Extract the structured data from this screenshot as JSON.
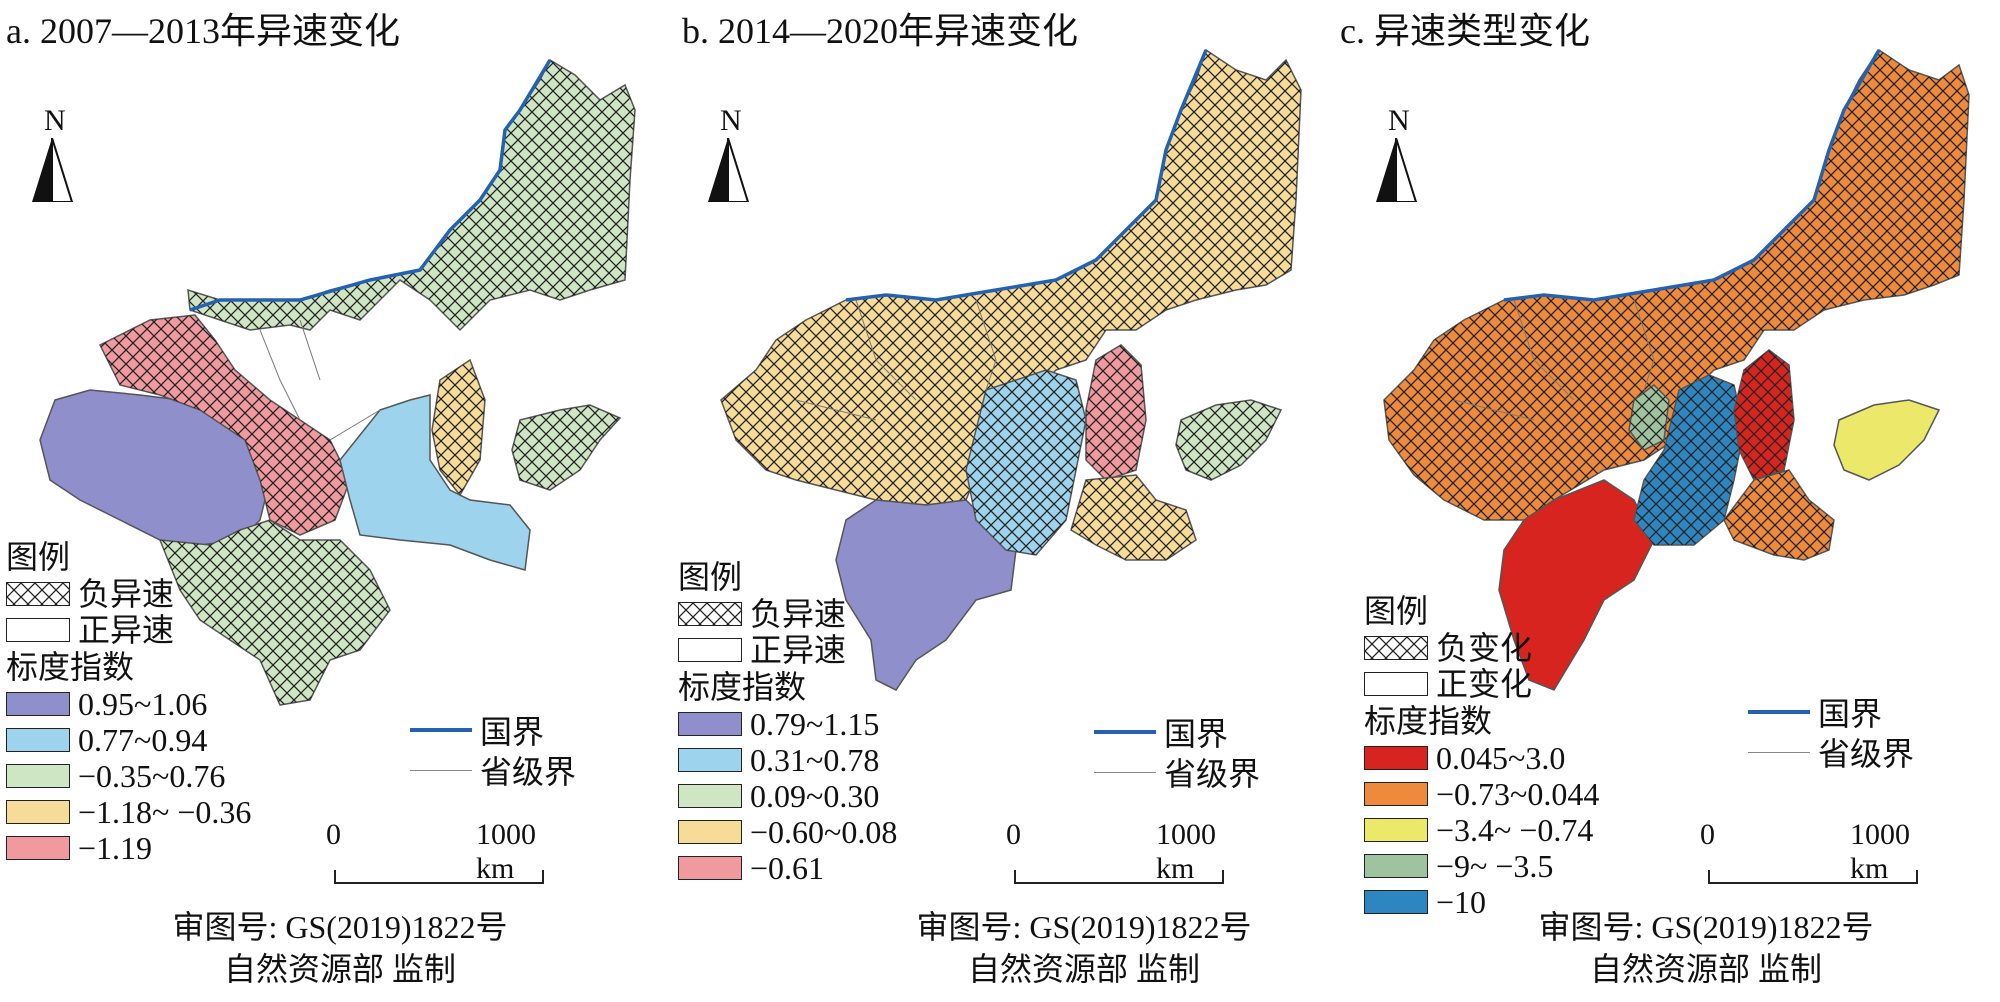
{
  "panels": [
    {
      "title": "a. 2007—2013年异速变化",
      "north": "N",
      "legend": {
        "heading": "图例",
        "pattern_items": [
          {
            "label": "负异速",
            "pattern": "hatch"
          },
          {
            "label": "正异速",
            "pattern": "blank"
          }
        ],
        "scale_heading": "标度指数",
        "classes": [
          {
            "label": "0.95~1.06",
            "color": "#8f8fcc"
          },
          {
            "label": "0.77~0.94",
            "color": "#9dd3ec"
          },
          {
            "label": "−0.35~0.76",
            "color": "#cfe6c4"
          },
          {
            "label": "−1.18~ −0.36",
            "color": "#f6dc98"
          },
          {
            "label": "−1.19",
            "color": "#f09aa0"
          }
        ]
      },
      "boundaries": {
        "national": "国界",
        "provincial": "省级界",
        "national_color": "#2461b0",
        "provincial_color": "#888888"
      },
      "scalebar": {
        "start": "0",
        "end": "1000 km"
      },
      "review": {
        "line1": "审图号: GS(2019)1822号",
        "line2": "自然资源部 监制"
      }
    },
    {
      "title": "b. 2014—2020年异速变化",
      "north": "N",
      "legend": {
        "heading": "图例",
        "pattern_items": [
          {
            "label": "负异速",
            "pattern": "hatch"
          },
          {
            "label": "正异速",
            "pattern": "blank"
          }
        ],
        "scale_heading": "标度指数",
        "classes": [
          {
            "label": "0.79~1.15",
            "color": "#8f8fcc"
          },
          {
            "label": "0.31~0.78",
            "color": "#9dd3ec"
          },
          {
            "label": "0.09~0.30",
            "color": "#cfe6c4"
          },
          {
            "label": "−0.60~0.08",
            "color": "#f6dc98"
          },
          {
            "label": "−0.61",
            "color": "#f09aa0"
          }
        ]
      },
      "boundaries": {
        "national": "国界",
        "provincial": "省级界",
        "national_color": "#2461b0",
        "provincial_color": "#888888"
      },
      "scalebar": {
        "start": "0",
        "end": "1000 km"
      },
      "review": {
        "line1": "审图号: GS(2019)1822号",
        "line2": "自然资源部 监制"
      }
    },
    {
      "title": "c. 异速类型变化",
      "north": "N",
      "legend": {
        "heading": "图例",
        "pattern_items": [
          {
            "label": "负变化",
            "pattern": "hatch"
          },
          {
            "label": "正变化",
            "pattern": "blank"
          }
        ],
        "scale_heading": "标度指数",
        "classes": [
          {
            "label": "0.045~3.0",
            "color": "#d7241f"
          },
          {
            "label": "−0.73~0.044",
            "color": "#ee8a3c"
          },
          {
            "label": "−3.4~ −0.74",
            "color": "#ece86a"
          },
          {
            "label": "−9~ −3.5",
            "color": "#9fc39e"
          },
          {
            "label": "−10",
            "color": "#2e86c1"
          }
        ]
      },
      "boundaries": {
        "national": "国界",
        "provincial": "省级界",
        "national_color": "#2461b0",
        "provincial_color": "#888888"
      },
      "scalebar": {
        "start": "0",
        "end": "1000 km"
      },
      "review": {
        "line1": "审图号: GS(2019)1822号",
        "line2": "自然资源部 监制"
      }
    }
  ]
}
